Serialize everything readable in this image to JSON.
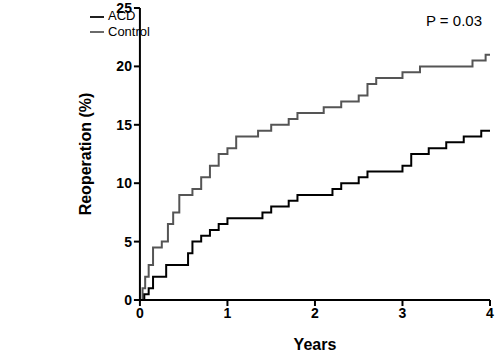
{
  "chart_data": {
    "type": "line",
    "x_label": "Years",
    "y_label": "Reoperation (%)",
    "annotation": "P = 0.03",
    "xlim": [
      0,
      4
    ],
    "xticks": [
      0,
      1,
      2,
      3,
      4
    ],
    "ylim": [
      0,
      25
    ],
    "yticks": [
      0,
      5,
      10,
      15,
      20,
      25
    ],
    "grid": false,
    "legend": "top-left",
    "line_style": "step",
    "series": [
      {
        "name": "Control",
        "color": "#555555",
        "x": [
          0,
          0.03,
          0.06,
          0.1,
          0.15,
          0.25,
          0.32,
          0.38,
          0.45,
          0.6,
          0.7,
          0.8,
          0.9,
          1.0,
          1.1,
          1.35,
          1.5,
          1.7,
          1.8,
          2.1,
          2.3,
          2.5,
          2.6,
          2.7,
          3.0,
          3.2,
          3.8,
          3.95,
          4.0
        ],
        "values": [
          0,
          1,
          2,
          3,
          4.5,
          5,
          6.5,
          7.5,
          9,
          9.5,
          10.5,
          11.5,
          12.5,
          13,
          14,
          14.5,
          15,
          15.5,
          16,
          16.5,
          17,
          17.5,
          18.5,
          19,
          19.5,
          20,
          20.5,
          21,
          21
        ]
      },
      {
        "name": "ACD",
        "color": "#000000",
        "x": [
          0,
          0.05,
          0.1,
          0.15,
          0.3,
          0.55,
          0.6,
          0.7,
          0.8,
          0.9,
          1.0,
          1.4,
          1.5,
          1.7,
          1.8,
          2.2,
          2.3,
          2.5,
          2.6,
          3.0,
          3.1,
          3.3,
          3.5,
          3.7,
          3.9,
          4.0
        ],
        "values": [
          0,
          0.5,
          1,
          2,
          3,
          4,
          5,
          5.5,
          6,
          6.5,
          7,
          7.5,
          8,
          8.5,
          9,
          9.5,
          10,
          10.5,
          11,
          11.5,
          12.5,
          13,
          13.5,
          14,
          14.5,
          14.5
        ]
      }
    ]
  }
}
